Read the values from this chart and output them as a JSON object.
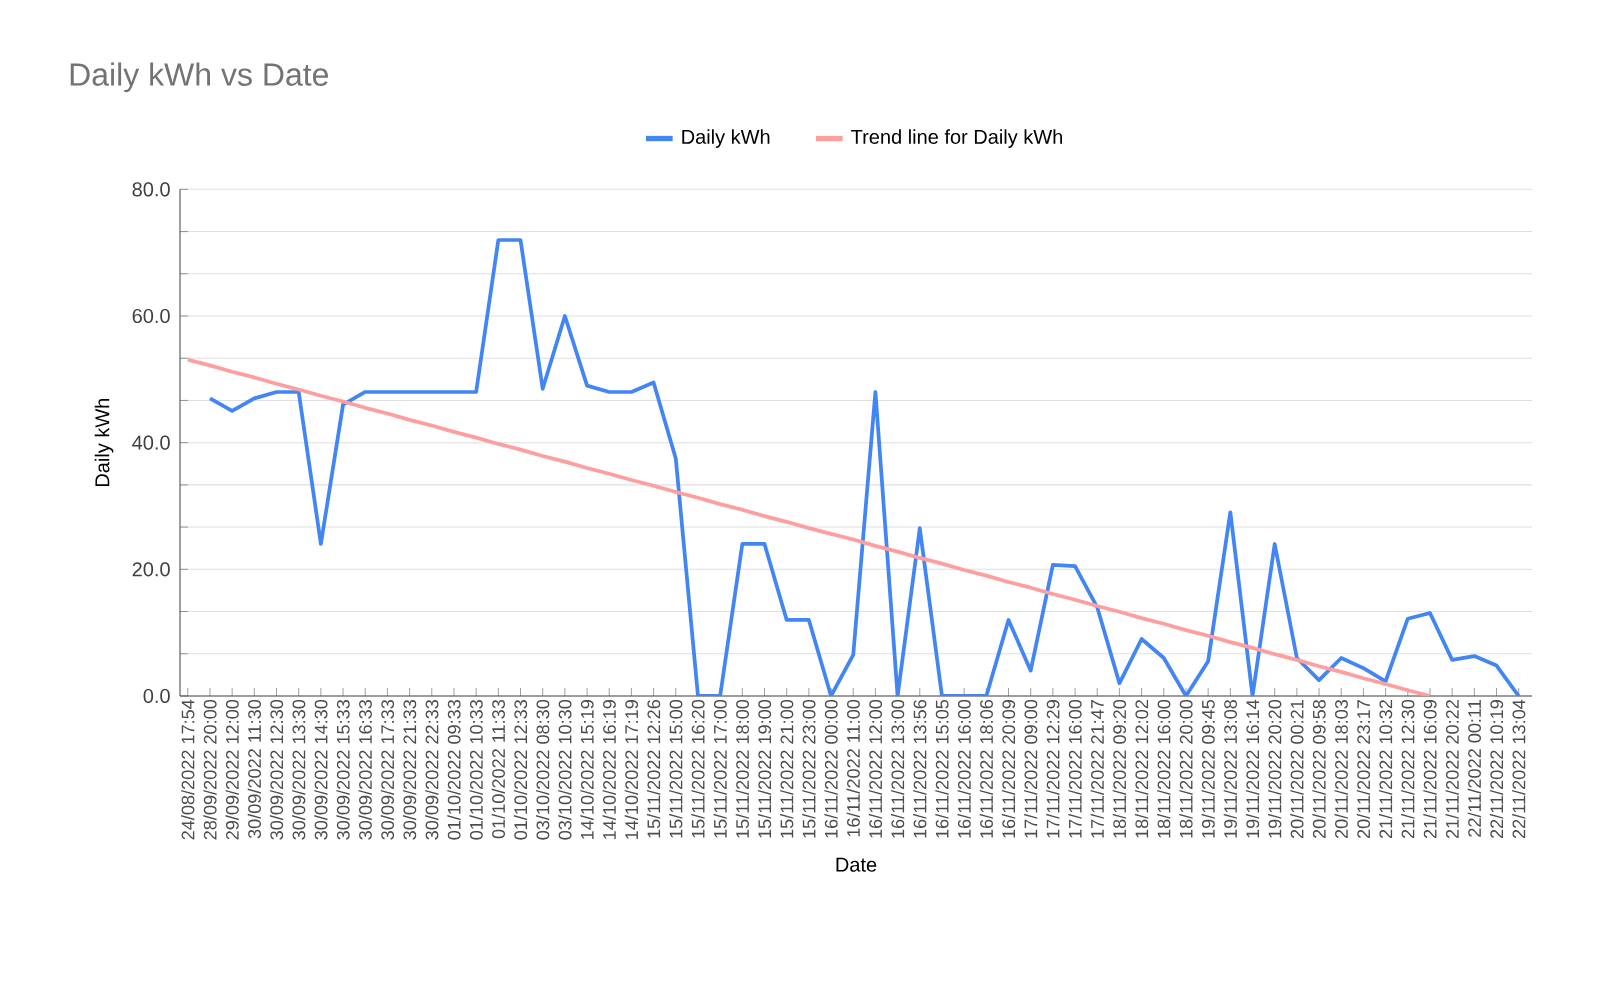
{
  "chart_data": {
    "type": "line",
    "title": "Daily kWh vs Date",
    "xlabel": "Date",
    "ylabel": "Daily kWh",
    "categories": [
      "24/08/2022 17:54",
      "28/09/2022 20:00",
      "29/09/2022 12:00",
      "30/09/2022 11:30",
      "30/09/2022 12:30",
      "30/09/2022 13:30",
      "30/09/2022 14:30",
      "30/09/2022 15:33",
      "30/09/2022 16:33",
      "30/09/2022 17:33",
      "30/09/2022 21:33",
      "30/09/2022 22:33",
      "01/10/2022 09:33",
      "01/10/2022 10:33",
      "01/10/2022 11:33",
      "01/10/2022 12:33",
      "03/10/2022 08:30",
      "03/10/2022 10:30",
      "14/10/2022 15:19",
      "14/10/2022 16:19",
      "14/10/2022 17:19",
      "15/11/2022 12:26",
      "15/11/2022 15:00",
      "15/11/2022 16:20",
      "15/11/2022 17:00",
      "15/11/2022 18:00",
      "15/11/2022 19:00",
      "15/11/2022 21:00",
      "15/11/2022 23:00",
      "16/11/2022 00:00",
      "16/11/2022 11:00",
      "16/11/2022 12:00",
      "16/11/2022 13:00",
      "16/11/2022 13:56",
      "16/11/2022 15:05",
      "16/11/2022 16:00",
      "16/11/2022 18:06",
      "16/11/2022 20:09",
      "17/11/2022 09:00",
      "17/11/2022 12:29",
      "17/11/2022 16:00",
      "17/11/2022 21:47",
      "18/11/2022 09:20",
      "18/11/2022 12:02",
      "18/11/2022 16:00",
      "18/11/2022 20:00",
      "19/11/2022 09:45",
      "19/11/2022 13:08",
      "19/11/2022 16:14",
      "19/11/2022 20:20",
      "20/11/2022 00:21",
      "20/11/2022 09:58",
      "20/11/2022 18:03",
      "20/11/2022 23:17",
      "21/11/2022 10:32",
      "21/11/2022 12:30",
      "21/11/2022 16:09",
      "21/11/2022 20:22",
      "22/11/2022 00:11",
      "22/11/2022 10:19",
      "22/11/2022 13:04"
    ],
    "series": [
      {
        "name": "Daily kWh",
        "color": "#4285f4",
        "values": [
          null,
          47,
          45,
          47,
          48,
          48,
          24,
          46,
          48,
          48,
          48,
          48,
          48,
          48,
          72,
          72,
          48.5,
          60,
          49,
          48,
          48,
          49.5,
          37.5,
          0,
          0,
          24,
          24,
          12,
          12,
          0,
          6.5,
          48,
          0,
          26.5,
          0,
          0,
          0,
          12,
          4,
          20.7,
          20.5,
          14,
          2,
          9,
          6,
          0,
          5.5,
          29,
          0,
          24,
          6,
          2.5,
          6,
          4.4,
          2.3,
          12.2,
          13.1,
          5.7,
          6.3,
          4.8,
          0
        ]
      },
      {
        "name": "Trend line for Daily kWh",
        "color": "#ff9e9e",
        "values": [
          53.1,
          52.2,
          51.2,
          50.3,
          49.3,
          48.4,
          47.4,
          46.5,
          45.5,
          44.6,
          43.6,
          42.7,
          41.7,
          40.8,
          39.8,
          38.9,
          37.9,
          37.0,
          36.0,
          35.1,
          34.1,
          33.2,
          32.2,
          31.3,
          30.3,
          29.4,
          28.4,
          27.5,
          26.5,
          25.6,
          24.7,
          23.7,
          22.8,
          21.8,
          20.9,
          19.9,
          19.0,
          18.0,
          17.1,
          16.1,
          15.2,
          14.2,
          13.3,
          12.3,
          11.4,
          10.4,
          9.5,
          8.5,
          7.6,
          6.6,
          5.7,
          4.7,
          3.8,
          2.8,
          1.9,
          0.9,
          0,
          null,
          null,
          null,
          null
        ]
      }
    ],
    "ylim": [
      0,
      80
    ],
    "yticks": [
      {
        "value": 0,
        "label": "0.0"
      },
      {
        "value": 6.67,
        "label": null
      },
      {
        "value": 13.33,
        "label": null
      },
      {
        "value": 20,
        "label": "20.0"
      },
      {
        "value": 26.67,
        "label": null
      },
      {
        "value": 33.33,
        "label": null
      },
      {
        "value": 40,
        "label": "40.0"
      },
      {
        "value": 46.67,
        "label": null
      },
      {
        "value": 53.33,
        "label": null
      },
      {
        "value": 60,
        "label": "60.0"
      },
      {
        "value": 66.67,
        "label": null
      },
      {
        "value": 73.33,
        "label": null
      },
      {
        "value": 80,
        "label": "80.0"
      }
    ],
    "grid": "y",
    "legend": "top",
    "marker": "none",
    "line_style": "solid"
  }
}
